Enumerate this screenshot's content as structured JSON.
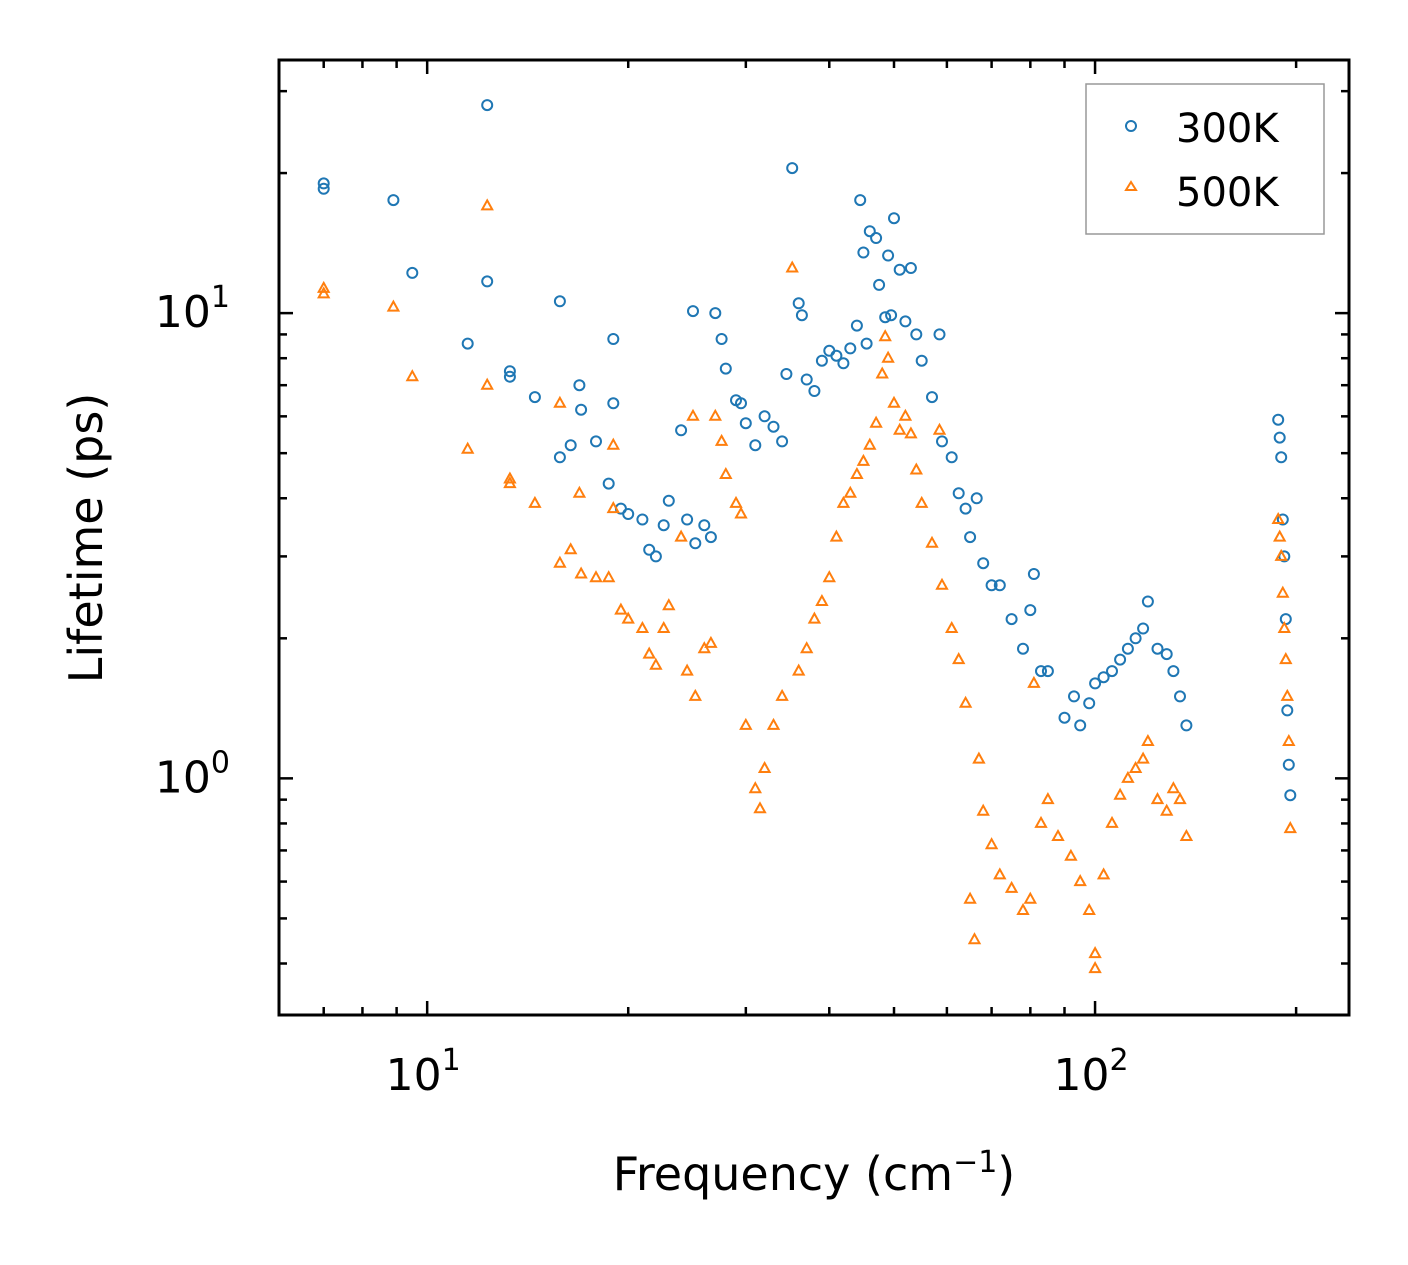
{
  "chart_data": {
    "type": "scatter",
    "title": "",
    "xlabel": "Frequency (cm",
    "xlabel_sup": "−1",
    "xlabel_end": ")",
    "ylabel": "Lifetime (ps)",
    "xscale": "log",
    "yscale": "log",
    "xlim": [
      6,
      240
    ],
    "ylim": [
      0.31,
      35
    ],
    "x_ticks": [
      {
        "value": 10,
        "base": "10",
        "exp": "1"
      },
      {
        "value": 100,
        "base": "10",
        "exp": "2"
      }
    ],
    "y_ticks": [
      {
        "value": 1,
        "base": "10",
        "exp": "0"
      },
      {
        "value": 10,
        "base": "10",
        "exp": "1"
      }
    ],
    "legend_position": "top-right",
    "series": [
      {
        "name": "300K",
        "marker": "circle",
        "color": "#1f77b4",
        "points": [
          [
            7.0,
            19.0
          ],
          [
            7.0,
            18.5
          ],
          [
            8.9,
            17.5
          ],
          [
            9.5,
            12.2
          ],
          [
            11.5,
            8.6
          ],
          [
            12.3,
            28.0
          ],
          [
            12.3,
            11.7
          ],
          [
            13.3,
            7.5
          ],
          [
            13.3,
            7.3
          ],
          [
            14.5,
            6.6
          ],
          [
            15.8,
            10.6
          ],
          [
            15.8,
            4.9
          ],
          [
            16.4,
            5.2
          ],
          [
            16.9,
            7.0
          ],
          [
            17.0,
            6.2
          ],
          [
            17.9,
            5.3
          ],
          [
            18.7,
            4.3
          ],
          [
            19.0,
            8.8
          ],
          [
            19.0,
            6.4
          ],
          [
            19.5,
            3.8
          ],
          [
            20.0,
            3.7
          ],
          [
            21.0,
            3.6
          ],
          [
            21.5,
            3.1
          ],
          [
            22.0,
            3.0
          ],
          [
            22.6,
            3.5
          ],
          [
            23.0,
            3.95
          ],
          [
            24.0,
            5.6
          ],
          [
            24.5,
            3.6
          ],
          [
            25.0,
            10.1
          ],
          [
            25.2,
            3.2
          ],
          [
            26.0,
            3.5
          ],
          [
            26.6,
            3.3
          ],
          [
            27.0,
            10.0
          ],
          [
            27.6,
            8.8
          ],
          [
            28.0,
            7.6
          ],
          [
            29.0,
            6.5
          ],
          [
            29.5,
            6.4
          ],
          [
            30.0,
            5.8
          ],
          [
            31.0,
            5.2
          ],
          [
            32.0,
            6.0
          ],
          [
            33.0,
            5.7
          ],
          [
            34.0,
            5.3
          ],
          [
            34.5,
            7.4
          ],
          [
            35.2,
            20.5
          ],
          [
            36.0,
            10.5
          ],
          [
            36.4,
            9.9
          ],
          [
            37.0,
            7.2
          ],
          [
            38.0,
            6.8
          ],
          [
            39.0,
            7.9
          ],
          [
            40.0,
            8.3
          ],
          [
            41.0,
            8.1
          ],
          [
            42.0,
            7.8
          ],
          [
            43.0,
            8.4
          ],
          [
            44.0,
            9.4
          ],
          [
            44.5,
            17.5
          ],
          [
            45.0,
            13.5
          ],
          [
            45.5,
            8.6
          ],
          [
            46.0,
            15.0
          ],
          [
            47.0,
            14.5
          ],
          [
            47.5,
            11.5
          ],
          [
            48.5,
            9.8
          ],
          [
            49.0,
            13.3
          ],
          [
            49.5,
            9.9
          ],
          [
            50.0,
            16.0
          ],
          [
            51.0,
            12.4
          ],
          [
            52.0,
            9.6
          ],
          [
            53.0,
            12.5
          ],
          [
            54.0,
            9.0
          ],
          [
            55.0,
            7.9
          ],
          [
            57.0,
            6.6
          ],
          [
            58.5,
            9.0
          ],
          [
            59.0,
            5.3
          ],
          [
            61.0,
            4.9
          ],
          [
            62.5,
            4.1
          ],
          [
            64.0,
            3.8
          ],
          [
            65.0,
            3.3
          ],
          [
            66.5,
            4.0
          ],
          [
            68.0,
            2.9
          ],
          [
            70.0,
            2.6
          ],
          [
            72.0,
            2.6
          ],
          [
            75.0,
            2.2
          ],
          [
            78.0,
            1.9
          ],
          [
            80.0,
            2.3
          ],
          [
            81.0,
            2.75
          ],
          [
            83.0,
            1.7
          ],
          [
            85.0,
            1.7
          ],
          [
            90.0,
            1.35
          ],
          [
            93.0,
            1.5
          ],
          [
            95.0,
            1.3
          ],
          [
            98.0,
            1.45
          ],
          [
            100.0,
            1.6
          ],
          [
            103.0,
            1.65
          ],
          [
            106.0,
            1.7
          ],
          [
            109.0,
            1.8
          ],
          [
            112.0,
            1.9
          ],
          [
            115.0,
            2.0
          ],
          [
            118.0,
            2.1
          ],
          [
            120.0,
            2.4
          ],
          [
            124.0,
            1.9
          ],
          [
            128.0,
            1.85
          ],
          [
            131.0,
            1.7
          ],
          [
            134.0,
            1.5
          ],
          [
            137.0,
            1.3
          ],
          [
            188.0,
            5.9
          ],
          [
            189.0,
            5.4
          ],
          [
            190.0,
            4.9
          ],
          [
            191.0,
            3.6
          ],
          [
            192.0,
            3.0
          ],
          [
            193.0,
            2.2
          ],
          [
            194.0,
            1.4
          ],
          [
            195.0,
            1.07
          ],
          [
            196.0,
            0.92
          ]
        ]
      },
      {
        "name": "500K",
        "marker": "triangle",
        "color": "#ff7f0e",
        "points": [
          [
            7.0,
            11.3
          ],
          [
            7.0,
            11.0
          ],
          [
            8.9,
            10.3
          ],
          [
            9.5,
            7.3
          ],
          [
            11.5,
            5.1
          ],
          [
            12.3,
            17.0
          ],
          [
            12.3,
            7.0
          ],
          [
            13.3,
            4.4
          ],
          [
            13.3,
            4.3
          ],
          [
            14.5,
            3.9
          ],
          [
            15.8,
            6.4
          ],
          [
            15.8,
            2.9
          ],
          [
            16.4,
            3.1
          ],
          [
            16.9,
            4.1
          ],
          [
            17.0,
            2.75
          ],
          [
            17.9,
            2.7
          ],
          [
            18.7,
            2.7
          ],
          [
            19.0,
            5.2
          ],
          [
            19.0,
            3.8
          ],
          [
            19.5,
            2.3
          ],
          [
            20.0,
            2.2
          ],
          [
            21.0,
            2.1
          ],
          [
            21.5,
            1.85
          ],
          [
            22.0,
            1.75
          ],
          [
            22.6,
            2.1
          ],
          [
            23.0,
            2.35
          ],
          [
            24.0,
            3.3
          ],
          [
            24.5,
            1.7
          ],
          [
            25.0,
            6.0
          ],
          [
            25.2,
            1.5
          ],
          [
            26.0,
            1.9
          ],
          [
            26.6,
            1.95
          ],
          [
            27.0,
            6.0
          ],
          [
            27.6,
            5.3
          ],
          [
            28.0,
            4.5
          ],
          [
            29.0,
            3.9
          ],
          [
            29.5,
            3.7
          ],
          [
            30.0,
            1.3
          ],
          [
            31.0,
            0.95
          ],
          [
            31.5,
            0.86
          ],
          [
            32.0,
            1.05
          ],
          [
            33.0,
            1.3
          ],
          [
            34.0,
            1.5
          ],
          [
            35.2,
            12.5
          ],
          [
            36.0,
            1.7
          ],
          [
            37.0,
            1.9
          ],
          [
            38.0,
            2.2
          ],
          [
            39.0,
            2.4
          ],
          [
            40.0,
            2.7
          ],
          [
            41.0,
            3.3
          ],
          [
            42.0,
            3.9
          ],
          [
            43.0,
            4.1
          ],
          [
            44.0,
            4.5
          ],
          [
            45.0,
            4.8
          ],
          [
            46.0,
            5.2
          ],
          [
            47.0,
            5.8
          ],
          [
            48.0,
            7.4
          ],
          [
            48.5,
            8.9
          ],
          [
            49.0,
            8.0
          ],
          [
            50.0,
            6.4
          ],
          [
            51.0,
            5.6
          ],
          [
            52.0,
            6.0
          ],
          [
            53.0,
            5.5
          ],
          [
            54.0,
            4.6
          ],
          [
            55.0,
            3.9
          ],
          [
            57.0,
            3.2
          ],
          [
            58.5,
            5.6
          ],
          [
            59.0,
            2.6
          ],
          [
            61.0,
            2.1
          ],
          [
            62.5,
            1.8
          ],
          [
            64.0,
            1.45
          ],
          [
            65.0,
            0.55
          ],
          [
            66.0,
            0.45
          ],
          [
            67.0,
            1.1
          ],
          [
            68.0,
            0.85
          ],
          [
            70.0,
            0.72
          ],
          [
            72.0,
            0.62
          ],
          [
            75.0,
            0.58
          ],
          [
            78.0,
            0.52
          ],
          [
            80.0,
            0.55
          ],
          [
            81.0,
            1.6
          ],
          [
            83.0,
            0.8
          ],
          [
            85.0,
            0.9
          ],
          [
            88.0,
            0.75
          ],
          [
            92.0,
            0.68
          ],
          [
            95.0,
            0.6
          ],
          [
            98.0,
            0.52
          ],
          [
            100.0,
            0.42
          ],
          [
            100.0,
            0.39
          ],
          [
            103.0,
            0.62
          ],
          [
            106.0,
            0.8
          ],
          [
            109.0,
            0.92
          ],
          [
            112.0,
            1.0
          ],
          [
            115.0,
            1.05
          ],
          [
            118.0,
            1.1
          ],
          [
            120.0,
            1.2
          ],
          [
            124.0,
            0.9
          ],
          [
            128.0,
            0.85
          ],
          [
            131.0,
            0.95
          ],
          [
            134.0,
            0.9
          ],
          [
            137.0,
            0.75
          ],
          [
            188.0,
            3.6
          ],
          [
            189.0,
            3.3
          ],
          [
            190.0,
            3.0
          ],
          [
            191.0,
            2.5
          ],
          [
            192.0,
            2.1
          ],
          [
            193.0,
            1.8
          ],
          [
            194.0,
            1.5
          ],
          [
            195.0,
            1.2
          ],
          [
            196.0,
            0.78
          ]
        ]
      }
    ]
  }
}
